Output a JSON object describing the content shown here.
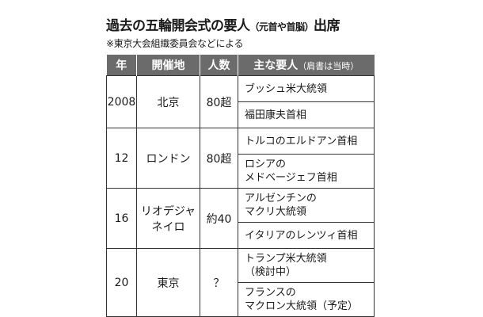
{
  "title": {
    "main": "過去の五輪開会式の要人",
    "paren": "（元首や首脳）",
    "tail": "出席"
  },
  "source_note": "※東京大会組織委員会などによる",
  "table": {
    "headers": {
      "year": "年",
      "venue": "開催地",
      "count": "人数",
      "dignitaries": "主な要人",
      "dignitaries_note": "（肩書は当時）"
    },
    "rows": [
      {
        "year": "2008",
        "venue": [
          "北京"
        ],
        "count": "80超",
        "people": [
          [
            "ブッシュ米大統領"
          ],
          [
            "福田康夫首相"
          ]
        ]
      },
      {
        "year": "12",
        "venue": [
          "ロンドン"
        ],
        "count": "80超",
        "people": [
          [
            "トルコのエルドアン首相"
          ],
          [
            "ロシアの",
            "メドベージェフ首相"
          ]
        ]
      },
      {
        "year": "16",
        "venue": [
          "リオデジャ",
          "ネイロ"
        ],
        "count": "約40",
        "people": [
          [
            "アルゼンチンの",
            "マクリ大統領"
          ],
          [
            "イタリアのレンツィ首相"
          ]
        ]
      },
      {
        "year": "20",
        "venue": [
          "東京"
        ],
        "count": "？",
        "people": [
          [
            "トランプ米大統領",
            "（検討中）"
          ],
          [
            "フランスの",
            "マクロン大統領（予定）"
          ]
        ]
      }
    ]
  }
}
